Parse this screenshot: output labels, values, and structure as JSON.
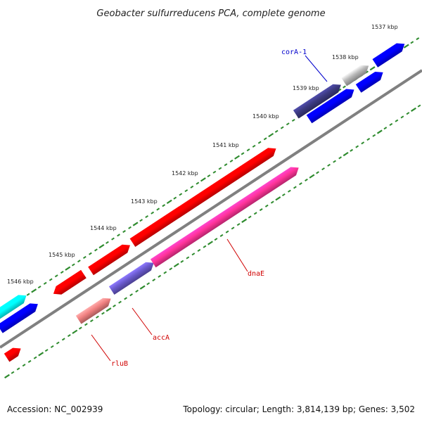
{
  "title": "Geobacter sulfurreducens PCA, complete genome",
  "ticks": [
    "1537 kbp",
    "1538 kbp",
    "1539 kbp",
    "1540 kbp",
    "1541 kbp",
    "1542 kbp",
    "1543 kbp",
    "1544 kbp",
    "1545 kbp",
    "1546 kbp"
  ],
  "gene_labels": {
    "corA1": "corA-1",
    "dnaE": "dnaE",
    "accA": "accA",
    "rluB": "rluB"
  },
  "footer": {
    "accession": "Accession: NC_002939",
    "summary": "Topology: circular; Length: 3,814,139 bp; Genes: 3,502"
  },
  "colors": {
    "backbone": "#808080",
    "tick": "#2e8b2e",
    "cyan": "#00ffff",
    "blue": "#0000ff",
    "red": "#ff0000",
    "pink": "#ff3399",
    "salmon": "#f08080",
    "slate": "#6a5acd",
    "darkslate": "#3c3a80",
    "gray": "#b8b8b8",
    "label_red": "#d00000",
    "label_blue": "#0000cc"
  }
}
